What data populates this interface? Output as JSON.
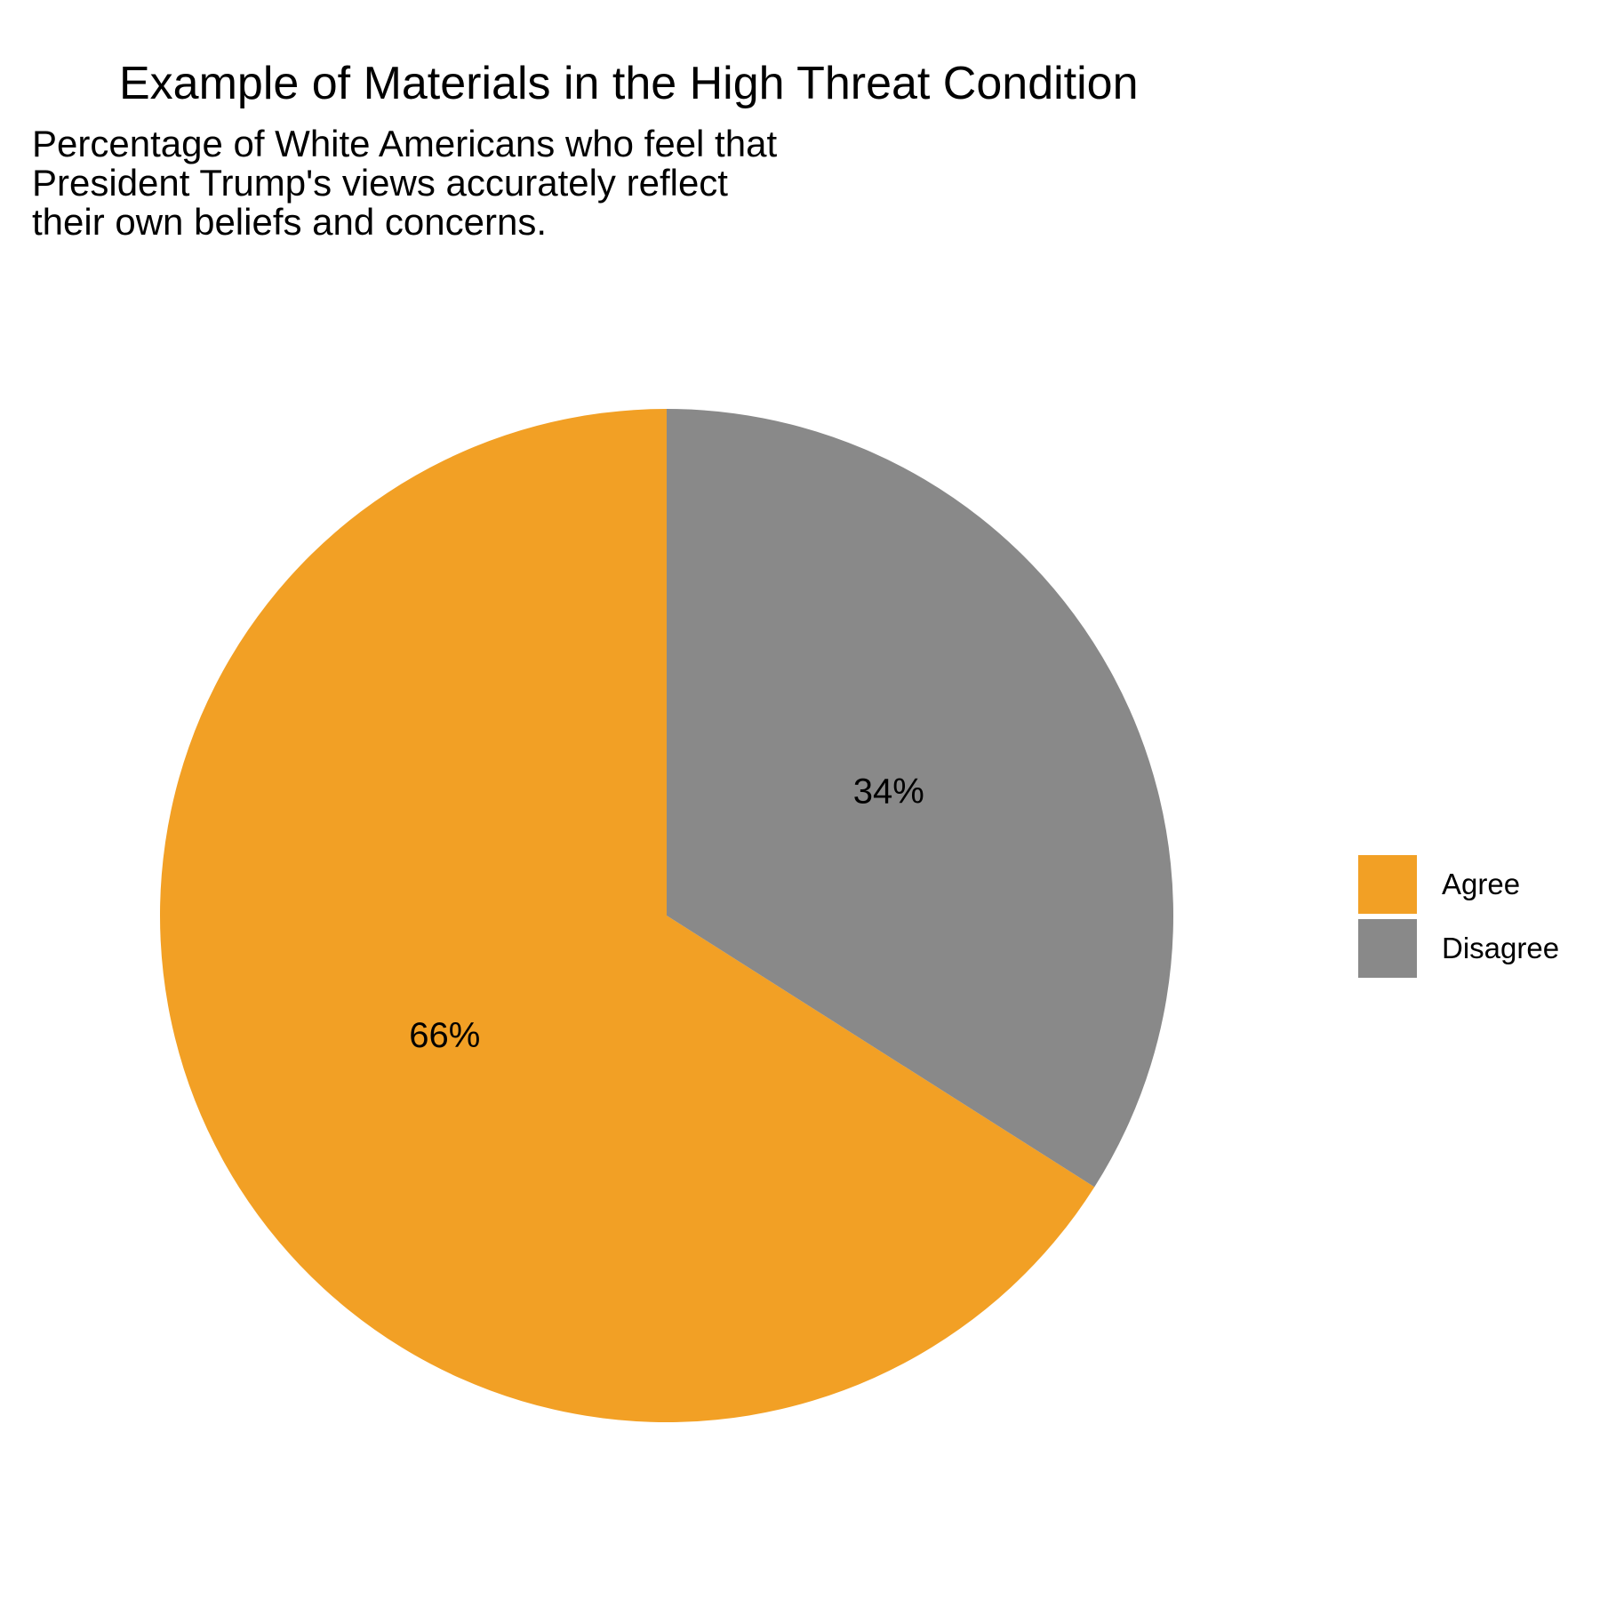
{
  "chart_data": {
    "type": "pie",
    "title": "Example of Materials in the High Threat Condition",
    "subtitle": [
      "Percentage of White Americans who feel that",
      "President Trump's views accurately reflect",
      "their own beliefs and concerns."
    ],
    "slices": [
      {
        "name": "Agree",
        "value": 66,
        "label": "66%",
        "color": "#F2A025"
      },
      {
        "name": "Disagree",
        "value": 34,
        "label": "34%",
        "color": "#898989"
      }
    ],
    "legend_position": "right"
  }
}
